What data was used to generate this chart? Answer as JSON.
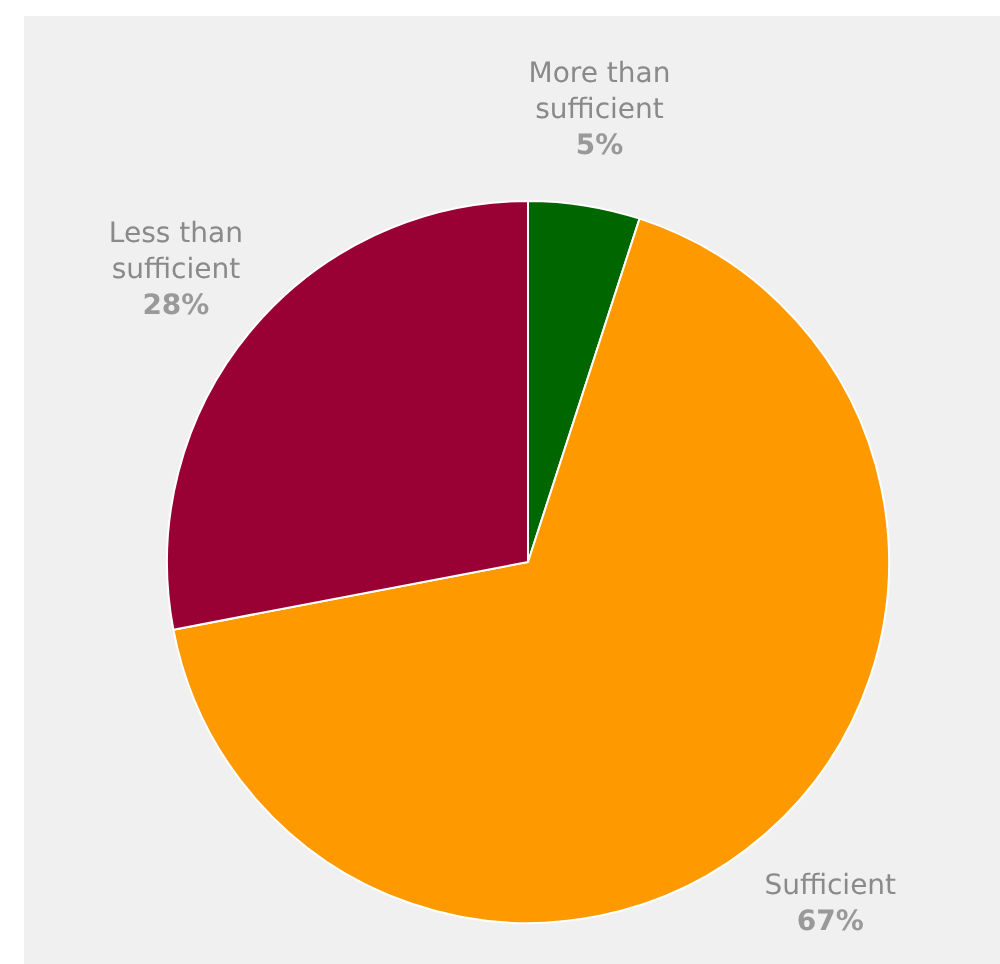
{
  "chart_data": {
    "type": "pie",
    "categories": [
      "More than sufficient",
      "Sufficient",
      "Less than sufficient"
    ],
    "values": [
      5,
      67,
      28
    ],
    "colors": [
      "#006600",
      "#ff9900",
      "#990033"
    ],
    "value_labels": [
      "5%",
      "67%",
      "28%"
    ],
    "legend": false
  }
}
